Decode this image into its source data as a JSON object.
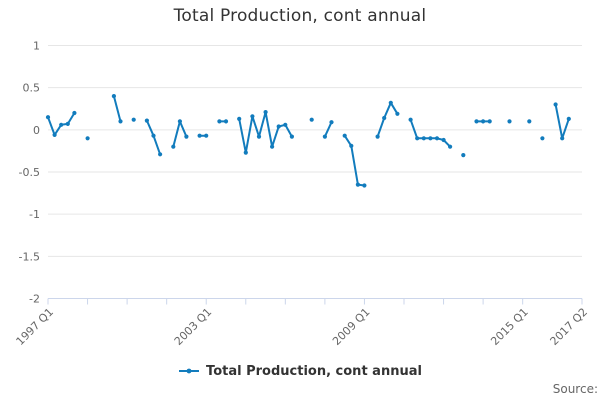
{
  "title": "Total Production, cont annual",
  "legend": {
    "label": "Total Production, cont annual"
  },
  "source_label": "Source:",
  "colors": {
    "series": "#127cbd",
    "grid": "#e6e6e6",
    "axis_line": "#ccd6eb",
    "tick": "#ccd6eb",
    "axis_text": "#666666",
    "title_text": "#333333",
    "legend_text": "#333333",
    "background": "#ffffff"
  },
  "chart_data": {
    "type": "line",
    "title": "Total Production, cont annual",
    "xlabel": "",
    "ylabel": "",
    "x_start_label": "1997 Q1",
    "x_end_label": "2017 Q2",
    "x_unit": "quarter",
    "x_tick_labels": [
      "1997 Q1",
      "2003 Q1",
      "2009 Q1",
      "2015 Q1",
      "2017 Q2"
    ],
    "x_tick_positions_q": [
      0,
      24,
      48,
      72,
      81
    ],
    "x_minor_ticks_q": [
      0,
      6,
      12,
      18,
      24,
      30,
      36,
      42,
      48,
      54,
      60,
      66,
      72,
      81
    ],
    "q_max": 81,
    "ylim": [
      -2,
      1
    ],
    "y_ticks": [
      1,
      0.5,
      0,
      -0.5,
      -1,
      -1.5,
      -2
    ],
    "grid": true,
    "legend_position": "bottom",
    "marker_style": "dot",
    "series": [
      {
        "name": "Total Production, cont annual",
        "values": [
          0.15,
          -0.06,
          0.06,
          0.07,
          0.2,
          null,
          -0.1,
          null,
          null,
          null,
          0.4,
          0.1,
          null,
          0.12,
          null,
          0.11,
          -0.07,
          -0.29,
          null,
          -0.2,
          0.1,
          -0.08,
          null,
          -0.07,
          -0.07,
          null,
          0.1,
          0.1,
          null,
          0.13,
          -0.27,
          0.16,
          -0.08,
          0.21,
          -0.2,
          0.04,
          0.06,
          -0.08,
          null,
          null,
          0.12,
          null,
          -0.08,
          0.09,
          null,
          -0.07,
          -0.19,
          -0.65,
          -0.66,
          null,
          -0.08,
          0.14,
          0.32,
          0.19,
          null,
          0.12,
          -0.1,
          -0.1,
          -0.1,
          -0.1,
          -0.12,
          -0.2,
          null,
          -0.3,
          null,
          0.1,
          0.1,
          0.1,
          null,
          null,
          0.1,
          null,
          null,
          0.1,
          null,
          -0.1,
          null,
          0.3,
          -0.1,
          0.13,
          null,
          null
        ]
      }
    ]
  }
}
